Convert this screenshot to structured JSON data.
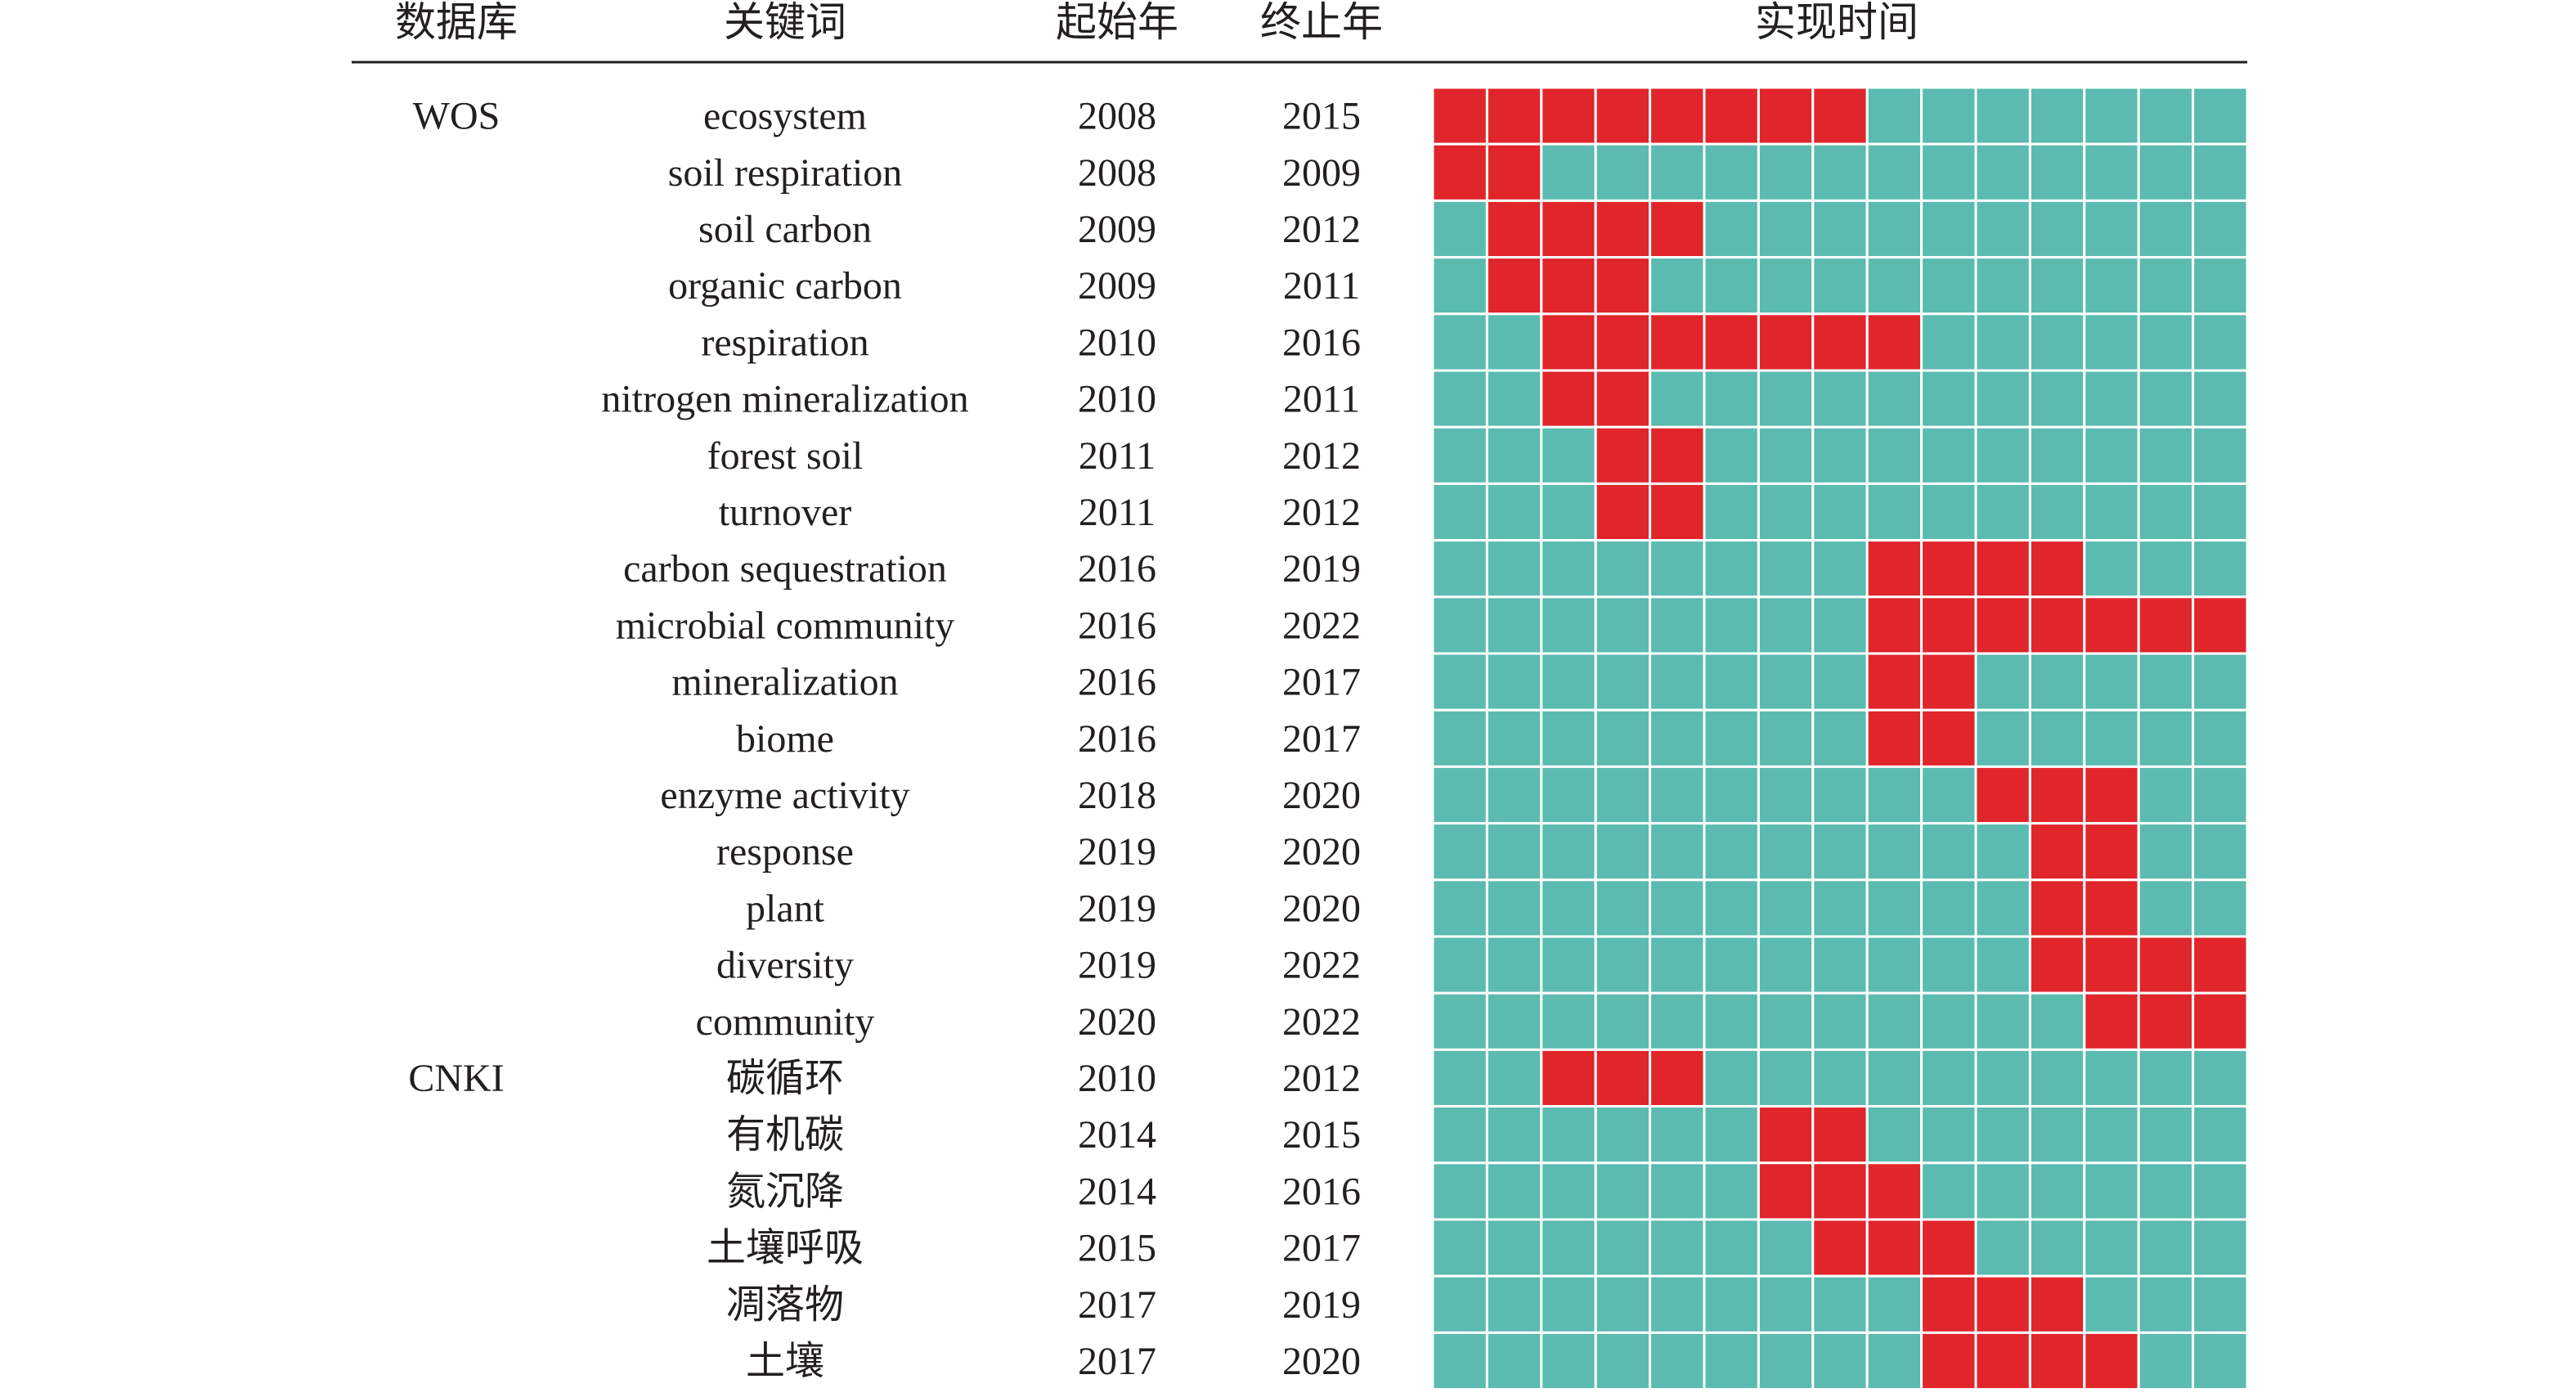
{
  "chart_data": {
    "type": "heatmap",
    "title": "",
    "headers": {
      "database": "数据库",
      "keyword": "关键词",
      "start_year": "起始年",
      "end_year": "终止年",
      "duration": "实现时间"
    },
    "timeline": {
      "first_year": 2008,
      "last_year": 2022
    },
    "colors": {
      "burst": "#e0252b",
      "background": "#5bbbb0",
      "grid": "#ffffff",
      "rule": "#231f20"
    },
    "groups": [
      {
        "database": "WOS",
        "rows": [
          {
            "keyword": "ecosystem",
            "start": 2008,
            "end": 2015
          },
          {
            "keyword": "soil respiration",
            "start": 2008,
            "end": 2009
          },
          {
            "keyword": "soil carbon",
            "start": 2009,
            "end": 2012
          },
          {
            "keyword": "organic carbon",
            "start": 2009,
            "end": 2011
          },
          {
            "keyword": "respiration",
            "start": 2010,
            "end": 2016
          },
          {
            "keyword": "nitrogen mineralization",
            "start": 2010,
            "end": 2011
          },
          {
            "keyword": "forest soil",
            "start": 2011,
            "end": 2012
          },
          {
            "keyword": "turnover",
            "start": 2011,
            "end": 2012
          },
          {
            "keyword": "carbon sequestration",
            "start": 2016,
            "end": 2019
          },
          {
            "keyword": "microbial community",
            "start": 2016,
            "end": 2022
          },
          {
            "keyword": "mineralization",
            "start": 2016,
            "end": 2017
          },
          {
            "keyword": "biome",
            "start": 2016,
            "end": 2017
          },
          {
            "keyword": "enzyme activity",
            "start": 2018,
            "end": 2020
          },
          {
            "keyword": "response",
            "start": 2019,
            "end": 2020
          },
          {
            "keyword": "plant",
            "start": 2019,
            "end": 2020
          },
          {
            "keyword": "diversity",
            "start": 2019,
            "end": 2022
          },
          {
            "keyword": "community",
            "start": 2020,
            "end": 2022
          }
        ]
      },
      {
        "database": "CNKI",
        "rows": [
          {
            "keyword": "碳循环",
            "start": 2010,
            "end": 2012
          },
          {
            "keyword": "有机碳",
            "start": 2014,
            "end": 2015
          },
          {
            "keyword": "氮沉降",
            "start": 2014,
            "end": 2016
          },
          {
            "keyword": "土壤呼吸",
            "start": 2015,
            "end": 2017
          },
          {
            "keyword": "凋落物",
            "start": 2017,
            "end": 2019
          },
          {
            "keyword": "土壤",
            "start": 2017,
            "end": 2020
          }
        ]
      }
    ]
  }
}
